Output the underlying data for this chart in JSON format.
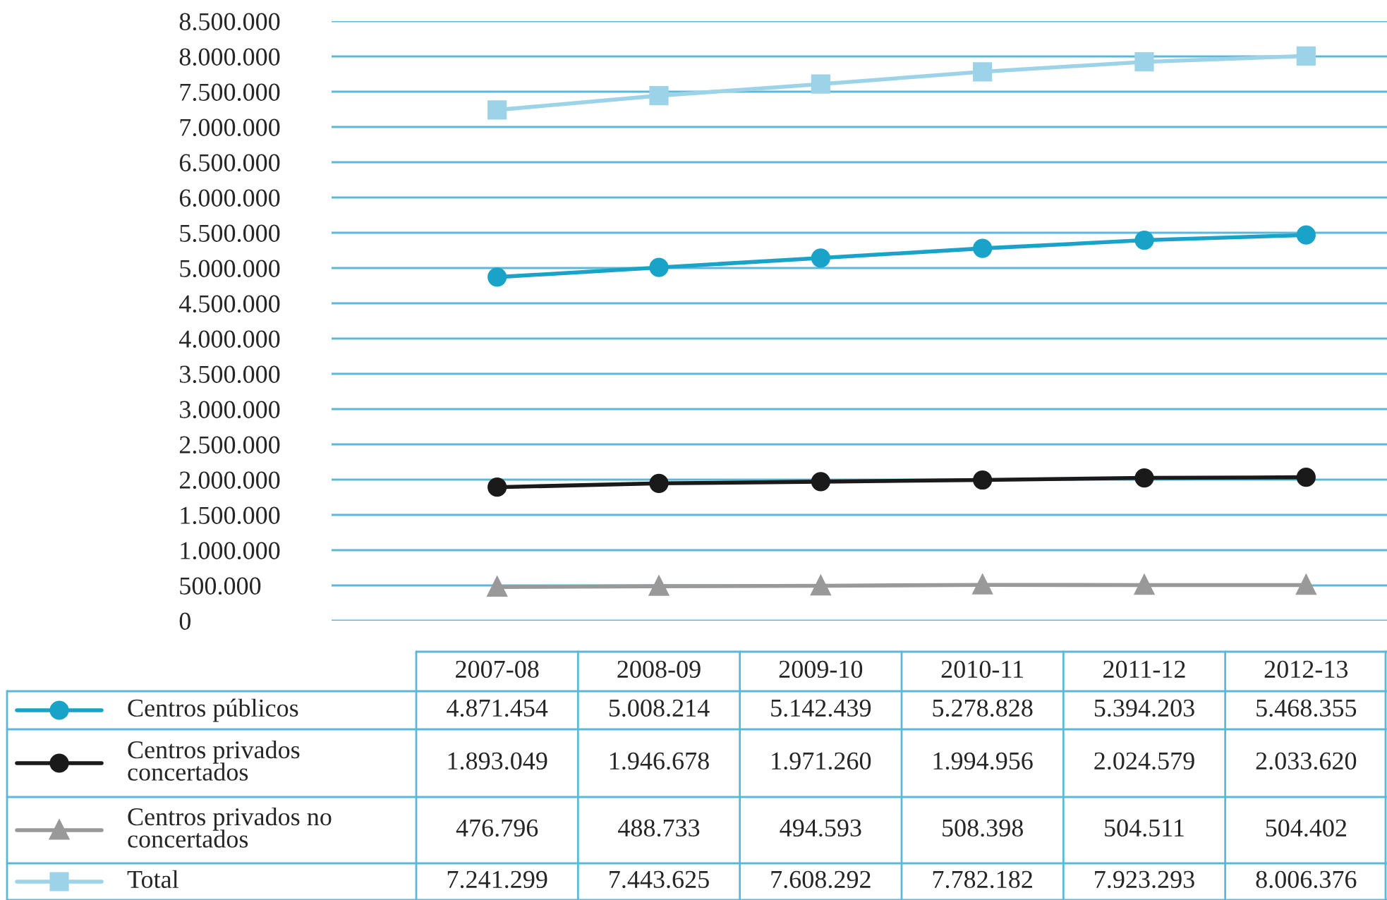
{
  "chart_data": {
    "type": "line",
    "categories": [
      "2007-08",
      "2008-09",
      "2009-10",
      "2010-11",
      "2011-12",
      "2012-13"
    ],
    "series": [
      {
        "name": "Centros públicos",
        "color": "#1aa3c8",
        "marker": "circle",
        "values": [
          4871454,
          5008214,
          5142439,
          5278828,
          5394203,
          5468355
        ],
        "value_labels": [
          "4.871.454",
          "5.008.214",
          "5.142.439",
          "5.278.828",
          "5.394.203",
          "5.468.355"
        ]
      },
      {
        "name": "Centros privados\nconcertados",
        "color": "#1a1a1a",
        "marker": "circle",
        "values": [
          1893049,
          1946678,
          1971260,
          1994956,
          2024579,
          2033620
        ],
        "value_labels": [
          "1.893.049",
          "1.946.678",
          "1.971.260",
          "1.994.956",
          "2.024.579",
          "2.033.620"
        ]
      },
      {
        "name": "Centros privados no\nconcertados",
        "color": "#999999",
        "marker": "triangle",
        "values": [
          476796,
          488733,
          494593,
          508398,
          504511,
          504402
        ],
        "value_labels": [
          "476.796",
          "488.733",
          "494.593",
          "508.398",
          "504.511",
          "504.402"
        ]
      },
      {
        "name": "Total",
        "color": "#9dd3e8",
        "marker": "square",
        "values": [
          7241299,
          7443625,
          7608292,
          7782182,
          7923293,
          8006376
        ],
        "value_labels": [
          "7.241.299",
          "7.443.625",
          "7.608.292",
          "7.782.182",
          "7.923.293",
          "8.006.376"
        ]
      }
    ],
    "ylim": [
      0,
      8500000
    ],
    "yticks": [
      0,
      {
        "value": 500000,
        "label": "500.000"
      },
      {
        "value": 1000000,
        "label": "1.000.000"
      },
      {
        "value": 1500000,
        "label": "1.500.000"
      },
      {
        "value": 2000000,
        "label": "2.000.000"
      },
      {
        "value": 2500000,
        "label": "2.500.000"
      },
      {
        "value": 3000000,
        "label": "3.000.000"
      },
      {
        "value": 3500000,
        "label": "3.500.000"
      },
      {
        "value": 4000000,
        "label": "4.000.000"
      },
      {
        "value": 4500000,
        "label": "4.500.000"
      },
      {
        "value": 5000000,
        "label": "5.000.000"
      },
      {
        "value": 5500000,
        "label": "5.500.000"
      },
      {
        "value": 6000000,
        "label": "6.000.000"
      },
      {
        "value": 6500000,
        "label": "6.500.000"
      },
      {
        "value": 7000000,
        "label": "7.000.000"
      },
      {
        "value": 7500000,
        "label": "7.500.000"
      },
      {
        "value": 8000000,
        "label": "8.000.000"
      },
      {
        "value": 8500000,
        "label": "8.500.000"
      }
    ],
    "grid": "y",
    "legend": "bottom",
    "line_style": "solid"
  }
}
